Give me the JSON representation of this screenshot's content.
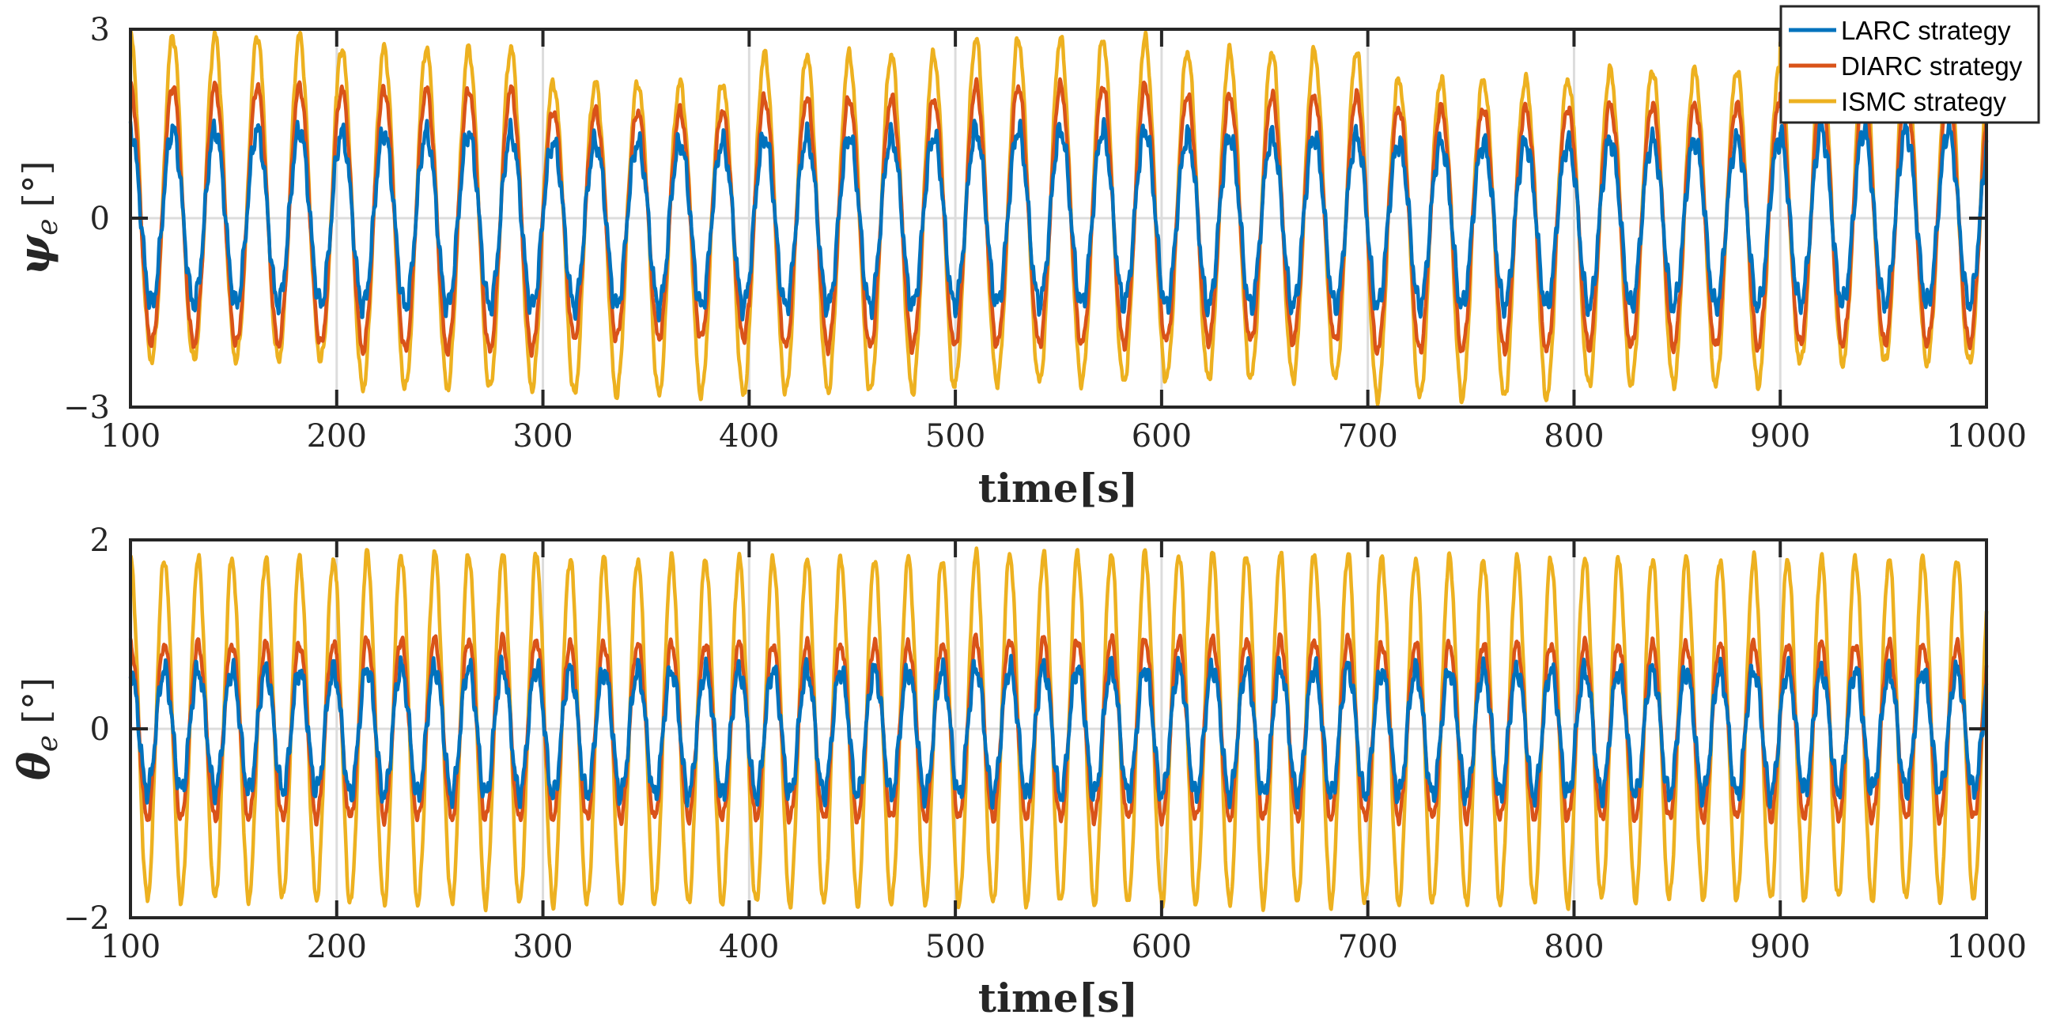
{
  "chart_data": [
    {
      "type": "line",
      "id": "psi",
      "ylabel_symbol": "ψ",
      "ylabel_sub": "e",
      "ylabel_unit": "[°]",
      "xlabel": "time[s]",
      "xlim": [
        100,
        1000
      ],
      "ylim": [
        -3,
        3
      ],
      "xticks": [
        100,
        200,
        300,
        400,
        500,
        600,
        700,
        800,
        900,
        1000
      ],
      "xtick_labels": [
        "100",
        "200",
        "300",
        "400",
        "500",
        "600",
        "700",
        "800",
        "900",
        "1000"
      ],
      "yticks": [
        -3,
        0,
        3
      ],
      "ytick_labels": [
        "−3",
        "0",
        "3"
      ],
      "grid": true,
      "period_s": 20.5,
      "series": [
        {
          "name": "ISMC strategy",
          "color": "#EDB120",
          "amplitude_by_segment": [
            2.9,
            2.7,
            2.15,
            2.6,
            2.85,
            2.65,
            2.2,
            2.35,
            2.8
          ],
          "trough_by_segment": [
            -2.25,
            -2.7,
            -2.8,
            -2.75,
            -2.6,
            -2.55,
            -2.85,
            -2.65,
            -2.3
          ]
        },
        {
          "name": "DIARC strategy",
          "color": "#D95319",
          "amplitude_by_segment": [
            2.1,
            2.05,
            1.7,
            1.9,
            2.1,
            1.95,
            1.75,
            1.8,
            2.05
          ],
          "trough_by_segment": [
            -2.0,
            -2.1,
            -1.9,
            -2.05,
            -2.0,
            -1.95,
            -2.1,
            -2.05,
            -2.0
          ]
        },
        {
          "name": "LARC strategy",
          "color": "#0072BD",
          "amplitude_by_segment": [
            1.4,
            1.35,
            1.2,
            1.3,
            1.4,
            1.3,
            1.2,
            1.25,
            1.4
          ],
          "trough_by_segment": [
            -1.35,
            -1.4,
            -1.4,
            -1.4,
            -1.35,
            -1.4,
            -1.4,
            -1.4,
            -1.35
          ]
        }
      ]
    },
    {
      "type": "line",
      "id": "theta",
      "ylabel_symbol": "θ",
      "ylabel_sub": "e",
      "ylabel_unit": "[°]",
      "xlabel": "time[s]",
      "xlim": [
        100,
        1000
      ],
      "ylim": [
        -2,
        2
      ],
      "xticks": [
        100,
        200,
        300,
        400,
        500,
        600,
        700,
        800,
        900,
        1000
      ],
      "xtick_labels": [
        "100",
        "200",
        "300",
        "400",
        "500",
        "600",
        "700",
        "800",
        "900",
        "1000"
      ],
      "yticks": [
        -2,
        0,
        2
      ],
      "ytick_labels": [
        "−2",
        "0",
        "2"
      ],
      "grid": true,
      "period_s": 16.4,
      "series": [
        {
          "name": "ISMC strategy",
          "color": "#EDB120",
          "amplitude_by_segment": [
            1.8,
            1.85,
            1.8,
            1.8,
            1.85,
            1.85,
            1.8,
            1.8,
            1.8
          ],
          "trough_by_segment": [
            -1.8,
            -1.85,
            -1.85,
            -1.85,
            -1.85,
            -1.85,
            -1.85,
            -1.8,
            -1.8
          ]
        },
        {
          "name": "DIARC strategy",
          "color": "#D95319",
          "amplitude_by_segment": [
            0.9,
            0.95,
            0.9,
            0.9,
            0.95,
            0.95,
            0.9,
            0.9,
            0.9
          ],
          "trough_by_segment": [
            -0.95,
            -0.95,
            -0.95,
            -0.95,
            -0.95,
            -0.95,
            -0.95,
            -0.95,
            -0.95
          ]
        },
        {
          "name": "LARC strategy",
          "color": "#0072BD",
          "amplitude_by_segment": [
            0.62,
            0.65,
            0.62,
            0.62,
            0.65,
            0.65,
            0.62,
            0.62,
            0.62
          ],
          "trough_by_segment": [
            -0.65,
            -0.7,
            -0.7,
            -0.7,
            -0.7,
            -0.7,
            -0.7,
            -0.7,
            -0.65
          ]
        }
      ]
    }
  ],
  "legend": {
    "location": "top-right",
    "entries": [
      {
        "label": "LARC strategy",
        "color": "#0072BD"
      },
      {
        "label": "DIARC strategy",
        "color": "#D95319"
      },
      {
        "label": "ISMC strategy",
        "color": "#EDB120"
      }
    ]
  }
}
